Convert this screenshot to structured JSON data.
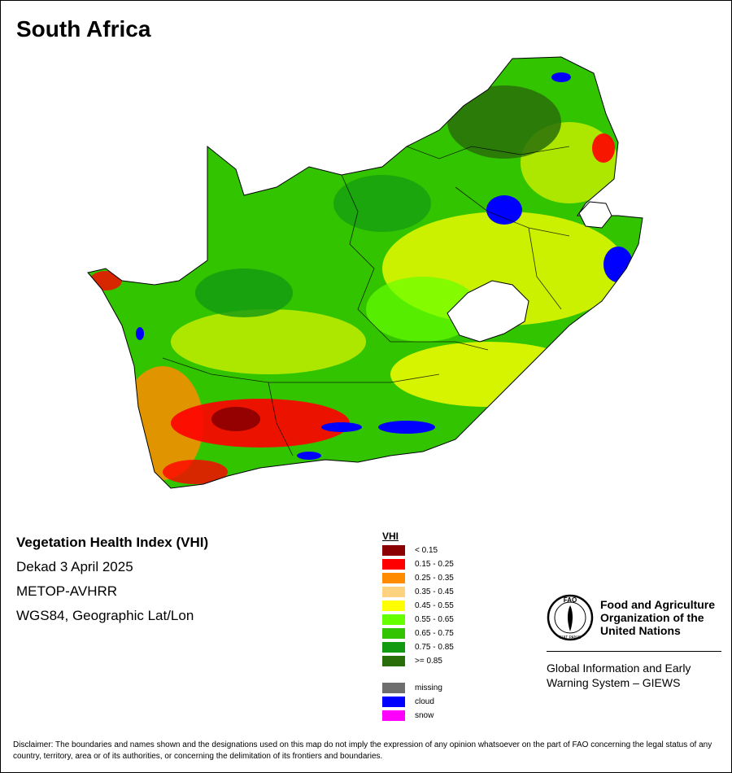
{
  "title": "South Africa",
  "info": {
    "heading": "Vegetation Health Index (VHI)",
    "period": "Dekad 3 April 2025",
    "sensor": "METOP-AVHRR",
    "projection": "WGS84, Geographic Lat/Lon"
  },
  "legend": {
    "title": "VHI",
    "classes": [
      {
        "label": "< 0.15",
        "color": "#8b0000"
      },
      {
        "label": "0.15 - 0.25",
        "color": "#ff0000"
      },
      {
        "label": "0.25 - 0.35",
        "color": "#ff8c00"
      },
      {
        "label": "0.35 - 0.45",
        "color": "#ffd27f"
      },
      {
        "label": "0.45 - 0.55",
        "color": "#ffff00"
      },
      {
        "label": "0.55 - 0.65",
        "color": "#66ff00"
      },
      {
        "label": "0.65 - 0.75",
        "color": "#33c400"
      },
      {
        "label": "0.75 - 0.85",
        "color": "#129a12"
      },
      {
        "label": ">= 0.85",
        "color": "#2a6e0a"
      }
    ],
    "other": [
      {
        "label": "missing",
        "color": "#6e6e6e"
      },
      {
        "label": "cloud",
        "color": "#0000ff"
      },
      {
        "label": "snow",
        "color": "#ff00ff"
      }
    ]
  },
  "org": {
    "name_line1": "Food and Agriculture",
    "name_line2": "Organization of the",
    "name_line3": "United Nations",
    "logo_text": "FAO",
    "logo_motto": "FIAT PANIS",
    "system_line1": "Global Information and Early",
    "system_line2": "Warning System – GIEWS"
  },
  "disclaimer": "Disclaimer: The boundaries and names shown and the designations used on this map do not imply the expression of any opinion whatsoever on the part of FAO concerning the legal status of any country, territory, area or of its authorities, or concerning the delimitation of its frontiers and boundaries."
}
